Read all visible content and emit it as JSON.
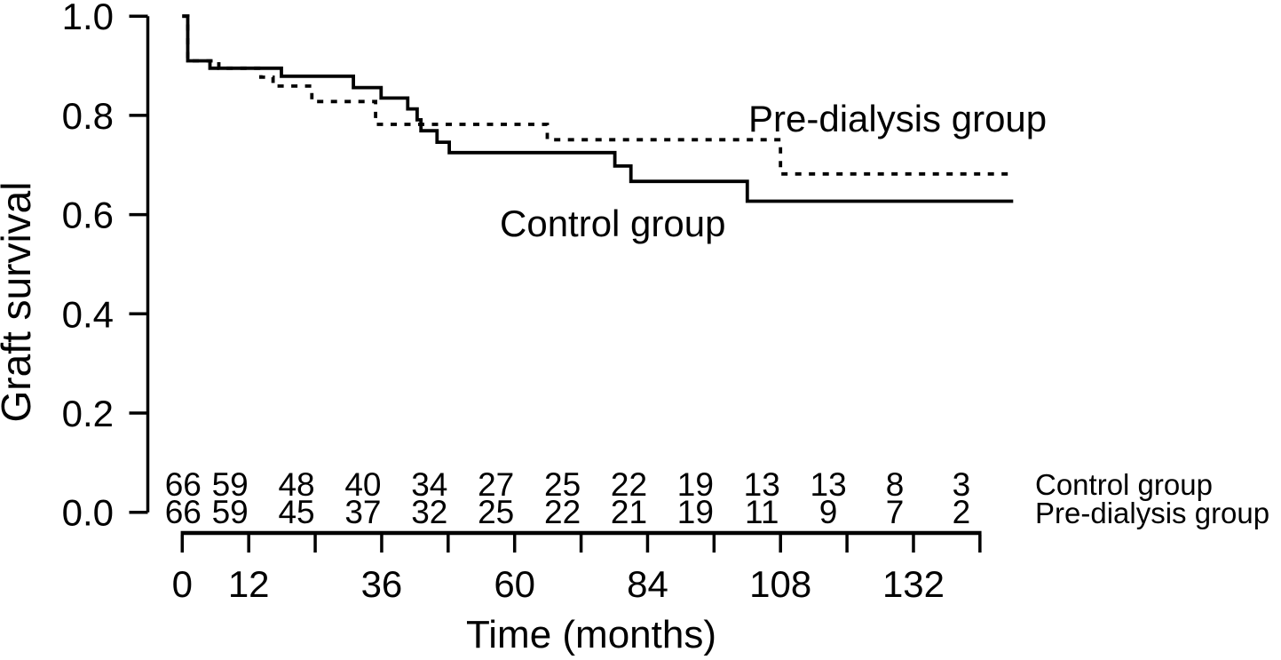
{
  "page": {
    "background_color": "#ffffff",
    "line_color": "#000000"
  },
  "chart_data": {
    "type": "line",
    "subtype": "kaplan-meier-step",
    "title": "",
    "xlabel": "Time (months)",
    "ylabel": "Graft survival",
    "xlim": [
      0,
      150
    ],
    "ylim": [
      0.0,
      1.0
    ],
    "grid": false,
    "legend_position": "inline-annotations",
    "y_ticks": [
      0.0,
      0.2,
      0.4,
      0.6,
      0.8,
      1.0
    ],
    "x_ticks": [
      0,
      12,
      24,
      36,
      48,
      60,
      72,
      84,
      96,
      108,
      120,
      132,
      144
    ],
    "x_tick_labels": [
      0,
      12,
      36,
      60,
      84,
      108,
      132
    ],
    "series": [
      {
        "name": "Control group",
        "line_style": "solid",
        "color": "#000000",
        "points": [
          {
            "t": 0,
            "s": 1.0
          },
          {
            "t": 1.0,
            "s": 0.91
          },
          {
            "t": 5.0,
            "s": 0.895
          },
          {
            "t": 17.9,
            "s": 0.879
          },
          {
            "t": 30.9,
            "s": 0.856
          },
          {
            "t": 35.9,
            "s": 0.835
          },
          {
            "t": 40.7,
            "s": 0.813
          },
          {
            "t": 42.4,
            "s": 0.791
          },
          {
            "t": 43.1,
            "s": 0.769
          },
          {
            "t": 46.0,
            "s": 0.746
          },
          {
            "t": 48.2,
            "s": 0.725
          },
          {
            "t": 78.1,
            "s": 0.698
          },
          {
            "t": 81.0,
            "s": 0.667
          },
          {
            "t": 102.0,
            "s": 0.627
          },
          {
            "t": 150.0,
            "s": 0.627
          }
        ]
      },
      {
        "name": "Pre-dialysis group",
        "line_style": "dotted",
        "color": "#000000",
        "points": [
          {
            "t": 0,
            "s": 1.0
          },
          {
            "t": 1.0,
            "s": 0.91
          },
          {
            "t": 6.6,
            "s": 0.895
          },
          {
            "t": 14.2,
            "s": 0.877
          },
          {
            "t": 16.4,
            "s": 0.859
          },
          {
            "t": 23.4,
            "s": 0.828
          },
          {
            "t": 34.9,
            "s": 0.782
          },
          {
            "t": 65.9,
            "s": 0.751
          },
          {
            "t": 108.0,
            "s": 0.682
          },
          {
            "t": 150.0,
            "s": 0.682
          }
        ]
      }
    ],
    "annotations": [
      {
        "text": "Pre-dialysis group",
        "series": 1
      },
      {
        "text": "Control group",
        "series": 0
      }
    ],
    "at_risk_table": {
      "times": [
        0,
        12,
        24,
        36,
        48,
        60,
        72,
        84,
        96,
        108,
        120,
        132,
        144
      ],
      "rows": [
        {
          "label": "Control group",
          "counts": [
            66,
            59,
            48,
            40,
            34,
            27,
            25,
            22,
            19,
            13,
            13,
            8,
            3
          ]
        },
        {
          "label": "Pre-dialysis group",
          "counts": [
            66,
            59,
            45,
            37,
            32,
            25,
            22,
            21,
            19,
            11,
            9,
            7,
            2
          ]
        }
      ]
    }
  }
}
